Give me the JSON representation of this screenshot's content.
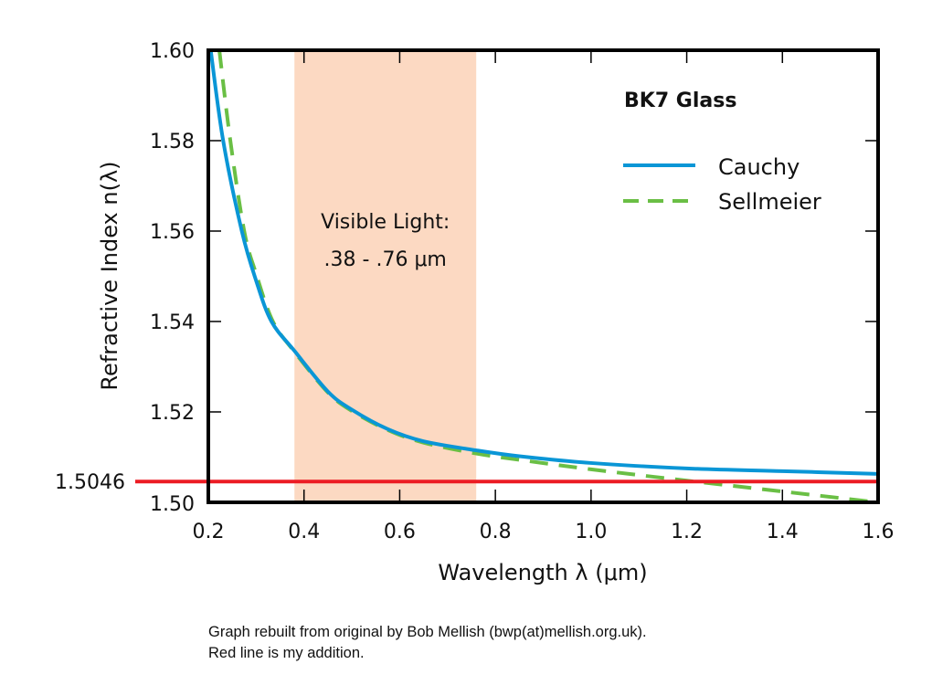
{
  "chart_data": {
    "type": "line",
    "title": "BK7 Glass",
    "xlabel": "Wavelength λ (μm)",
    "ylabel": "Refractive Index n(λ)",
    "xlim": [
      0.2,
      1.6
    ],
    "ylim": [
      1.5,
      1.6
    ],
    "x_ticks": [
      "0.2",
      "0.4",
      "0.6",
      "0.8",
      "1.0",
      "1.2",
      "1.4",
      "1.6"
    ],
    "y_ticks": [
      "1.50",
      "1.52",
      "1.54",
      "1.56",
      "1.58",
      "1.60"
    ],
    "grid": false,
    "legend_position": "top-right",
    "series": [
      {
        "name": "Cauchy",
        "style": "solid",
        "color": "#0a96d6",
        "x": [
          0.205,
          0.231,
          0.27,
          0.3,
          0.332,
          0.38,
          0.45,
          0.5,
          0.575,
          0.65,
          0.76,
          0.85,
          1.0,
          1.2,
          1.4,
          1.6
        ],
        "y": [
          1.6,
          1.58,
          1.56,
          1.549,
          1.54,
          1.5335,
          1.5245,
          1.5205,
          1.5162,
          1.5135,
          1.5115,
          1.5102,
          1.5087,
          1.5075,
          1.5069,
          1.5063
        ]
      },
      {
        "name": "Sellmeier",
        "style": "dashed",
        "color": "#6abf45",
        "x": [
          0.223,
          0.246,
          0.275,
          0.3,
          0.335,
          0.38,
          0.45,
          0.5,
          0.575,
          0.65,
          0.76,
          0.85,
          1.0,
          1.2,
          1.4,
          1.6
        ],
        "y": [
          1.6,
          1.58,
          1.56,
          1.5505,
          1.54,
          1.5333,
          1.5243,
          1.5202,
          1.516,
          1.5132,
          1.5108,
          1.5094,
          1.5073,
          1.5048,
          1.5024,
          1.5
        ]
      }
    ],
    "shaded_region": {
      "x_range": [
        0.38,
        0.76
      ],
      "color": "#fcd9c2",
      "label_line1": "Visible Light:",
      "label_line2": ".38 - .76 μm"
    },
    "reference_line": {
      "y": 1.5046,
      "label": "1.5046",
      "color": "#ec1c24"
    }
  },
  "caption": {
    "line1": "Graph rebuilt from original by Bob Mellish (bwp(at)mellish.org.uk).",
    "line2": "Red line is my addition."
  }
}
